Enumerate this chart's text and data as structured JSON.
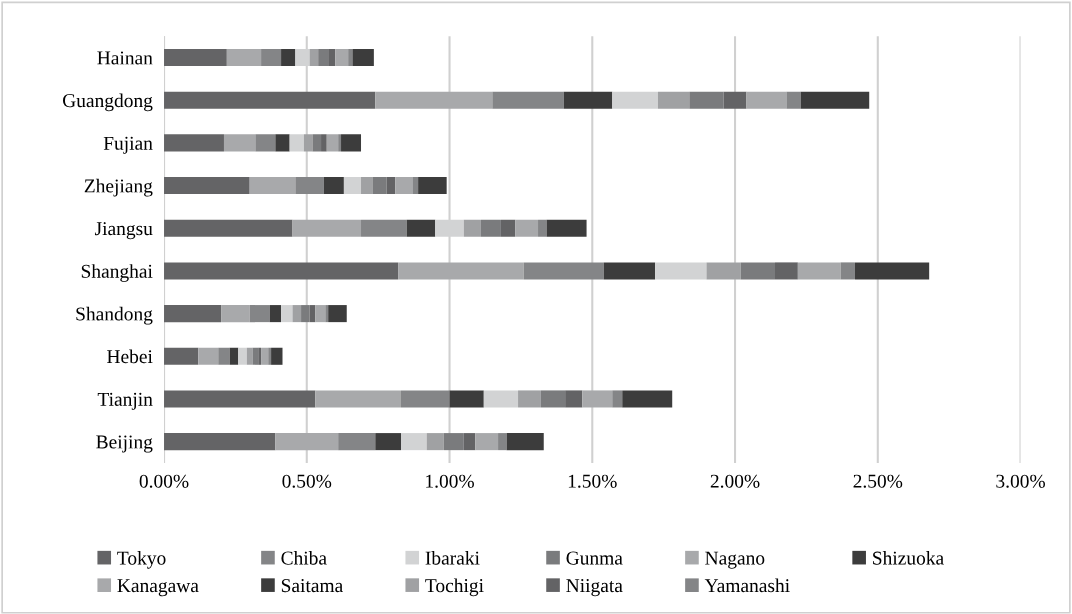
{
  "chart_data": {
    "type": "bar",
    "orientation": "horizontal",
    "stacked": true,
    "categories": [
      "Hainan",
      "Guangdong",
      "Fujian",
      "Zhejiang",
      "Jiangsu",
      "Shanghai",
      "Shandong",
      "Hebei",
      "Tianjin",
      "Beijing"
    ],
    "series": [
      {
        "name": "Tokyo",
        "color": "#646466",
        "values": [
          0.22,
          0.74,
          0.21,
          0.3,
          0.45,
          0.82,
          0.2,
          0.12,
          0.53,
          0.39
        ]
      },
      {
        "name": "Kanagawa",
        "color": "#a8a9ab",
        "values": [
          0.12,
          0.41,
          0.11,
          0.16,
          0.24,
          0.44,
          0.1,
          0.07,
          0.3,
          0.22
        ]
      },
      {
        "name": "Chiba",
        "color": "#848587",
        "values": [
          0.07,
          0.25,
          0.07,
          0.1,
          0.16,
          0.28,
          0.07,
          0.04,
          0.17,
          0.13
        ]
      },
      {
        "name": "Saitama",
        "color": "#3c3c3c",
        "values": [
          0.05,
          0.17,
          0.05,
          0.07,
          0.1,
          0.18,
          0.04,
          0.03,
          0.12,
          0.09
        ]
      },
      {
        "name": "Ibaraki",
        "color": "#d2d3d4",
        "values": [
          0.05,
          0.16,
          0.05,
          0.06,
          0.1,
          0.18,
          0.04,
          0.03,
          0.12,
          0.09
        ]
      },
      {
        "name": "Tochigi",
        "color": "#a0a1a3",
        "values": [
          0.03,
          0.11,
          0.03,
          0.04,
          0.06,
          0.12,
          0.03,
          0.02,
          0.08,
          0.06
        ]
      },
      {
        "name": "Gunma",
        "color": "#7a7b7d",
        "values": [
          0.035,
          0.12,
          0.03,
          0.05,
          0.07,
          0.12,
          0.03,
          0.02,
          0.085,
          0.07
        ]
      },
      {
        "name": "Niigata",
        "color": "#636365",
        "values": [
          0.025,
          0.08,
          0.02,
          0.03,
          0.05,
          0.08,
          0.02,
          0.01,
          0.06,
          0.04
        ]
      },
      {
        "name": "Nagano",
        "color": "#a8a9ab",
        "values": [
          0.045,
          0.14,
          0.04,
          0.06,
          0.08,
          0.15,
          0.035,
          0.025,
          0.105,
          0.08
        ]
      },
      {
        "name": "Yamanashi",
        "color": "#848587",
        "values": [
          0.015,
          0.05,
          0.01,
          0.02,
          0.03,
          0.05,
          0.01,
          0.01,
          0.035,
          0.03
        ]
      },
      {
        "name": "Shizuoka",
        "color": "#3c3c3c",
        "values": [
          0.075,
          0.24,
          0.07,
          0.1,
          0.14,
          0.26,
          0.065,
          0.04,
          0.175,
          0.13
        ]
      }
    ],
    "xlim": [
      0,
      3
    ],
    "xticks": [
      {
        "value": 0,
        "label": "0.00%"
      },
      {
        "value": 0.5,
        "label": "0.50%"
      },
      {
        "value": 1,
        "label": "1.00%"
      },
      {
        "value": 1.5,
        "label": "1.50%"
      },
      {
        "value": 2,
        "label": "2.00%"
      },
      {
        "value": 2.5,
        "label": "2.50%"
      },
      {
        "value": 3,
        "label": "3.00%"
      }
    ],
    "grid": "x",
    "legend": "bottom"
  }
}
